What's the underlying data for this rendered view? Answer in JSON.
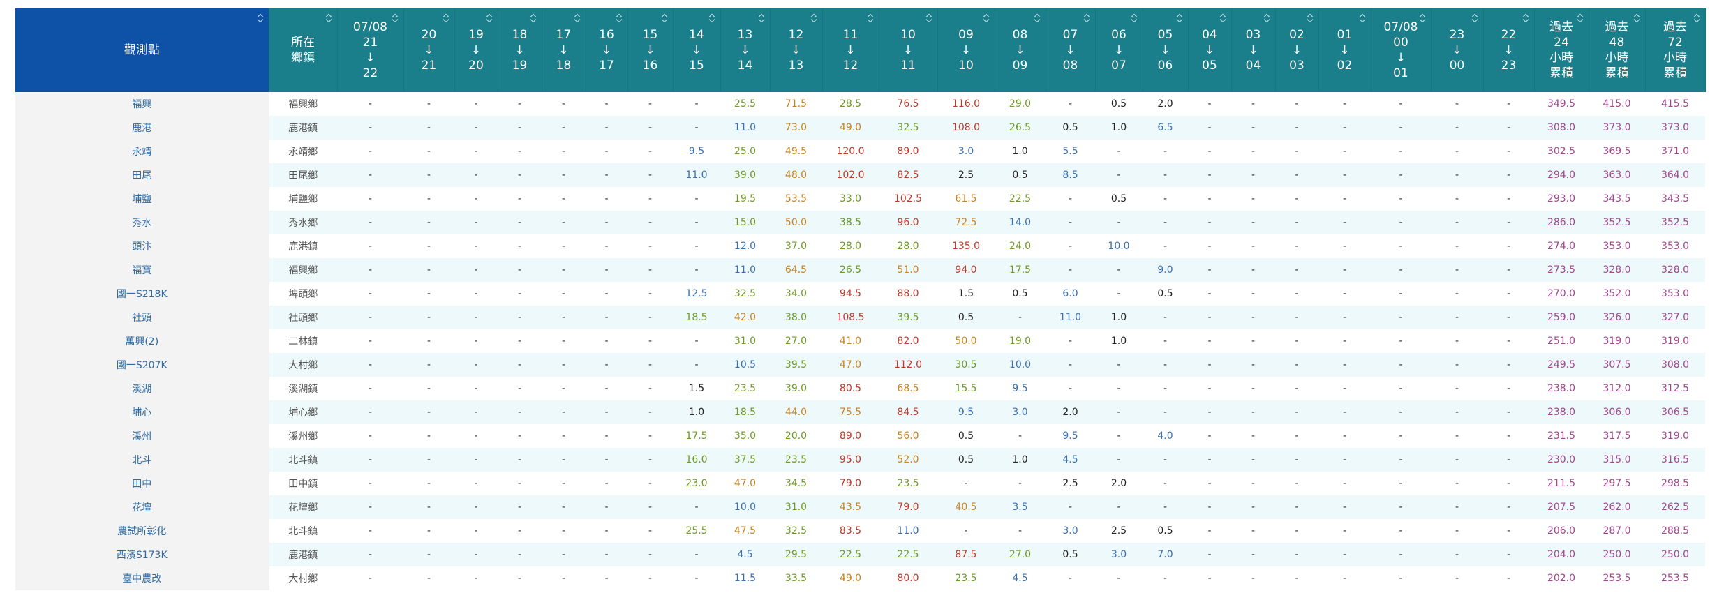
{
  "table": {
    "header": [
      [
        "觀測點"
      ],
      [
        "所在",
        "鄉鎮"
      ],
      [
        "07/08",
        "21",
        "↓",
        "22"
      ],
      [
        "20",
        "↓",
        "21"
      ],
      [
        "19",
        "↓",
        "20"
      ],
      [
        "18",
        "↓",
        "19"
      ],
      [
        "17",
        "↓",
        "18"
      ],
      [
        "16",
        "↓",
        "17"
      ],
      [
        "15",
        "↓",
        "16"
      ],
      [
        "14",
        "↓",
        "15"
      ],
      [
        "13",
        "↓",
        "14"
      ],
      [
        "12",
        "↓",
        "13"
      ],
      [
        "11",
        "↓",
        "12"
      ],
      [
        "10",
        "↓",
        "11"
      ],
      [
        "09",
        "↓",
        "10"
      ],
      [
        "08",
        "↓",
        "09"
      ],
      [
        "07",
        "↓",
        "08"
      ],
      [
        "06",
        "↓",
        "07"
      ],
      [
        "05",
        "↓",
        "06"
      ],
      [
        "04",
        "↓",
        "05"
      ],
      [
        "03",
        "↓",
        "04"
      ],
      [
        "02",
        "↓",
        "03"
      ],
      [
        "01",
        "↓",
        "02"
      ],
      [
        "07/08",
        "00",
        "↓",
        "01"
      ],
      [
        "23",
        "↓",
        "00"
      ],
      [
        "22",
        "↓",
        "23"
      ],
      [
        "過去",
        "24",
        "小時",
        "累積"
      ],
      [
        "過去",
        "48",
        "小時",
        "累積"
      ],
      [
        "過去",
        "72",
        "小時",
        "累積"
      ]
    ],
    "rows": [
      [
        "福興",
        "福興鄉",
        "-",
        "-",
        "-",
        "-",
        "-",
        "-",
        "-",
        "-",
        "25.5",
        "71.5",
        "28.5",
        "76.5",
        "116.0",
        "29.0",
        "-",
        "0.5",
        "2.0",
        "-",
        "-",
        "-",
        "-",
        "-",
        "-",
        "-",
        "349.5",
        "415.0",
        "415.5"
      ],
      [
        "鹿港",
        "鹿港鎮",
        "-",
        "-",
        "-",
        "-",
        "-",
        "-",
        "-",
        "-",
        "11.0",
        "73.0",
        "49.0",
        "32.5",
        "108.0",
        "26.5",
        "0.5",
        "1.0",
        "6.5",
        "-",
        "-",
        "-",
        "-",
        "-",
        "-",
        "-",
        "308.0",
        "373.0",
        "373.0"
      ],
      [
        "永靖",
        "永靖鄉",
        "-",
        "-",
        "-",
        "-",
        "-",
        "-",
        "-",
        "9.5",
        "25.0",
        "49.5",
        "120.0",
        "89.0",
        "3.0",
        "1.0",
        "5.5",
        "-",
        "-",
        "-",
        "-",
        "-",
        "-",
        "-",
        "-",
        "-",
        "302.5",
        "369.5",
        "371.0"
      ],
      [
        "田尾",
        "田尾鄉",
        "-",
        "-",
        "-",
        "-",
        "-",
        "-",
        "-",
        "11.0",
        "39.0",
        "48.0",
        "102.0",
        "82.5",
        "2.5",
        "0.5",
        "8.5",
        "-",
        "-",
        "-",
        "-",
        "-",
        "-",
        "-",
        "-",
        "-",
        "294.0",
        "363.0",
        "364.0"
      ],
      [
        "埔鹽",
        "埔鹽鄉",
        "-",
        "-",
        "-",
        "-",
        "-",
        "-",
        "-",
        "-",
        "19.5",
        "53.5",
        "33.0",
        "102.5",
        "61.5",
        "22.5",
        "-",
        "0.5",
        "-",
        "-",
        "-",
        "-",
        "-",
        "-",
        "-",
        "-",
        "293.0",
        "343.5",
        "343.5"
      ],
      [
        "秀水",
        "秀水鄉",
        "-",
        "-",
        "-",
        "-",
        "-",
        "-",
        "-",
        "-",
        "15.0",
        "50.0",
        "38.5",
        "96.0",
        "72.5",
        "14.0",
        "-",
        "-",
        "-",
        "-",
        "-",
        "-",
        "-",
        "-",
        "-",
        "-",
        "286.0",
        "352.5",
        "352.5"
      ],
      [
        "頭汴",
        "鹿港鎮",
        "-",
        "-",
        "-",
        "-",
        "-",
        "-",
        "-",
        "-",
        "12.0",
        "37.0",
        "28.0",
        "28.0",
        "135.0",
        "24.0",
        "-",
        "10.0",
        "-",
        "-",
        "-",
        "-",
        "-",
        "-",
        "-",
        "-",
        "274.0",
        "353.0",
        "353.0"
      ],
      [
        "福寶",
        "福興鄉",
        "-",
        "-",
        "-",
        "-",
        "-",
        "-",
        "-",
        "-",
        "11.0",
        "64.5",
        "26.5",
        "51.0",
        "94.0",
        "17.5",
        "-",
        "-",
        "9.0",
        "-",
        "-",
        "-",
        "-",
        "-",
        "-",
        "-",
        "273.5",
        "328.0",
        "328.0"
      ],
      [
        "國一S218K",
        "埤頭鄉",
        "-",
        "-",
        "-",
        "-",
        "-",
        "-",
        "-",
        "12.5",
        "32.5",
        "34.0",
        "94.5",
        "88.0",
        "1.5",
        "0.5",
        "6.0",
        "-",
        "0.5",
        "-",
        "-",
        "-",
        "-",
        "-",
        "-",
        "-",
        "270.0",
        "352.0",
        "353.0"
      ],
      [
        "社頭",
        "社頭鄉",
        "-",
        "-",
        "-",
        "-",
        "-",
        "-",
        "-",
        "18.5",
        "42.0",
        "38.0",
        "108.5",
        "39.5",
        "0.5",
        "-",
        "11.0",
        "1.0",
        "-",
        "-",
        "-",
        "-",
        "-",
        "-",
        "-",
        "-",
        "259.0",
        "326.0",
        "327.0"
      ],
      [
        "萬興(2)",
        "二林鎮",
        "-",
        "-",
        "-",
        "-",
        "-",
        "-",
        "-",
        "-",
        "31.0",
        "27.0",
        "41.0",
        "82.0",
        "50.0",
        "19.0",
        "-",
        "1.0",
        "-",
        "-",
        "-",
        "-",
        "-",
        "-",
        "-",
        "-",
        "251.0",
        "319.0",
        "319.0"
      ],
      [
        "國一S207K",
        "大村鄉",
        "-",
        "-",
        "-",
        "-",
        "-",
        "-",
        "-",
        "-",
        "10.5",
        "39.5",
        "47.0",
        "112.0",
        "30.5",
        "10.0",
        "-",
        "-",
        "-",
        "-",
        "-",
        "-",
        "-",
        "-",
        "-",
        "-",
        "249.5",
        "307.5",
        "308.0"
      ],
      [
        "溪湖",
        "溪湖鎮",
        "-",
        "-",
        "-",
        "-",
        "-",
        "-",
        "-",
        "1.5",
        "23.5",
        "39.0",
        "80.5",
        "68.5",
        "15.5",
        "9.5",
        "-",
        "-",
        "-",
        "-",
        "-",
        "-",
        "-",
        "-",
        "-",
        "-",
        "238.0",
        "312.0",
        "312.5"
      ],
      [
        "埔心",
        "埔心鄉",
        "-",
        "-",
        "-",
        "-",
        "-",
        "-",
        "-",
        "1.0",
        "18.5",
        "44.0",
        "75.5",
        "84.5",
        "9.5",
        "3.0",
        "2.0",
        "-",
        "-",
        "-",
        "-",
        "-",
        "-",
        "-",
        "-",
        "-",
        "238.0",
        "306.0",
        "306.5"
      ],
      [
        "溪州",
        "溪州鄉",
        "-",
        "-",
        "-",
        "-",
        "-",
        "-",
        "-",
        "17.5",
        "35.0",
        "20.0",
        "89.0",
        "56.0",
        "0.5",
        "-",
        "9.5",
        "-",
        "4.0",
        "-",
        "-",
        "-",
        "-",
        "-",
        "-",
        "-",
        "231.5",
        "317.5",
        "319.0"
      ],
      [
        "北斗",
        "北斗鎮",
        "-",
        "-",
        "-",
        "-",
        "-",
        "-",
        "-",
        "16.0",
        "37.5",
        "23.5",
        "95.0",
        "52.0",
        "0.5",
        "1.0",
        "4.5",
        "-",
        "-",
        "-",
        "-",
        "-",
        "-",
        "-",
        "-",
        "-",
        "230.0",
        "315.0",
        "316.5"
      ],
      [
        "田中",
        "田中鎮",
        "-",
        "-",
        "-",
        "-",
        "-",
        "-",
        "-",
        "23.0",
        "47.0",
        "34.5",
        "79.0",
        "23.5",
        "-",
        "-",
        "2.5",
        "2.0",
        "-",
        "-",
        "-",
        "-",
        "-",
        "-",
        "-",
        "-",
        "211.5",
        "297.5",
        "298.5"
      ],
      [
        "花壇",
        "花壇鄉",
        "-",
        "-",
        "-",
        "-",
        "-",
        "-",
        "-",
        "-",
        "10.0",
        "31.0",
        "43.5",
        "79.0",
        "40.5",
        "3.5",
        "-",
        "-",
        "-",
        "-",
        "-",
        "-",
        "-",
        "-",
        "-",
        "-",
        "207.5",
        "262.0",
        "262.5"
      ],
      [
        "農試所彰化",
        "北斗鎮",
        "-",
        "-",
        "-",
        "-",
        "-",
        "-",
        "-",
        "25.5",
        "47.5",
        "32.5",
        "83.5",
        "11.0",
        "-",
        "-",
        "3.0",
        "2.5",
        "0.5",
        "-",
        "-",
        "-",
        "-",
        "-",
        "-",
        "-",
        "206.0",
        "287.0",
        "288.5"
      ],
      [
        "西濱S173K",
        "鹿港鎮",
        "-",
        "-",
        "-",
        "-",
        "-",
        "-",
        "-",
        "-",
        "4.5",
        "29.5",
        "22.5",
        "22.5",
        "87.5",
        "27.0",
        "0.5",
        "3.0",
        "7.0",
        "-",
        "-",
        "-",
        "-",
        "-",
        "-",
        "-",
        "204.0",
        "250.0",
        "250.0"
      ],
      [
        "臺中農改",
        "大村鄉",
        "-",
        "-",
        "-",
        "-",
        "-",
        "-",
        "-",
        "-",
        "11.5",
        "33.5",
        "49.0",
        "80.0",
        "23.5",
        "4.5",
        "-",
        "-",
        "-",
        "-",
        "-",
        "-",
        "-",
        "-",
        "-",
        "-",
        "202.0",
        "253.5",
        "253.5"
      ]
    ]
  }
}
